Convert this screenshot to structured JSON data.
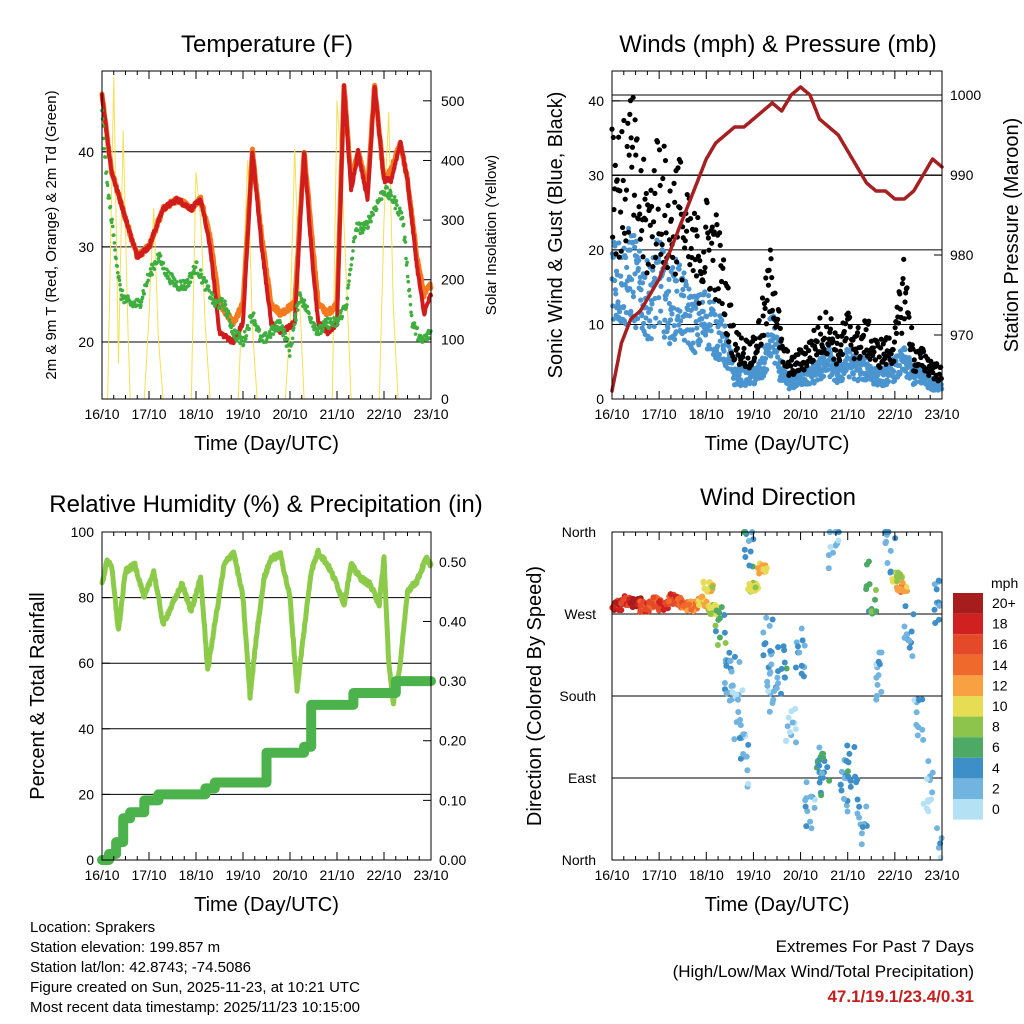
{
  "info": {
    "location": "Location: Sprakers",
    "elevation": "Station elevation: 199.857 m",
    "latlon": "Station lat/lon: 42.8743; -74.5086",
    "created": "Figure created on Sun, 2025-11-23, at 10:21 UTC",
    "latest": "Most recent data timestamp: 2025/11/23 10:15:00",
    "extremes_title": "Extremes For Past 7 Days",
    "extremes_sub": "(High/Low/Max Wind/Total Precipitation)",
    "extremes_values": "47.1/19.1/23.4/0.31"
  },
  "colors": {
    "temp2m": "#d01c1c",
    "temp9m": "#f57a1e",
    "dewpoint": "#3fae3f",
    "solar": "#f5e050",
    "wind": "#4a95d0",
    "gust": "#000000",
    "pressure": "#a52020",
    "rh": "#8ccb4a",
    "precip": "#4cb24c"
  },
  "chart_data": [
    {
      "id": "temperature",
      "type": "line",
      "title": "Temperature (F)",
      "xlabel": "Time (Day/UTC)",
      "ylabel": "2m & 9m T (Red, Orange) & 2m Td (Green)",
      "y2label": "Solar Insolation (Yellow)",
      "x_ticks": [
        "16/10",
        "17/10",
        "18/10",
        "19/10",
        "20/10",
        "21/10",
        "22/10",
        "23/10"
      ],
      "xlim": [
        0,
        7
      ],
      "ylim": [
        14,
        48.5
      ],
      "yticks": [
        20,
        30,
        40
      ],
      "y2lim": [
        0,
        550
      ],
      "y2ticks": [
        0,
        100,
        200,
        300,
        400,
        500
      ],
      "series": [
        {
          "name": "2m T",
          "color_key": "temp2m",
          "x": [
            0,
            0.2,
            0.5,
            0.75,
            1,
            1.3,
            1.6,
            1.9,
            2.1,
            2.3,
            2.5,
            2.8,
            3,
            3.2,
            3.4,
            3.6,
            3.8,
            4.1,
            4.3,
            4.45,
            4.6,
            4.8,
            5,
            5.15,
            5.3,
            5.45,
            5.65,
            5.8,
            6,
            6.15,
            6.35,
            6.5,
            6.7,
            6.85,
            7
          ],
          "y": [
            46,
            38,
            33,
            29,
            30,
            34,
            35,
            34,
            35,
            30,
            21,
            20,
            22,
            40,
            30,
            22,
            21,
            22,
            40,
            30,
            22,
            21,
            22,
            47,
            36,
            40,
            35,
            47,
            37,
            37,
            41,
            37,
            28,
            23,
            25
          ]
        },
        {
          "name": "9m T",
          "color_key": "temp9m",
          "x": [
            0,
            0.2,
            0.5,
            0.75,
            1,
            1.3,
            1.6,
            1.9,
            2.1,
            2.3,
            2.5,
            2.8,
            3,
            3.2,
            3.4,
            3.6,
            3.8,
            4.1,
            4.3,
            4.45,
            4.6,
            4.8,
            5,
            5.15,
            5.3,
            5.45,
            5.65,
            5.8,
            6,
            6.15,
            6.35,
            6.5,
            6.7,
            6.85,
            7
          ],
          "y": [
            46,
            38,
            33,
            29,
            30,
            34,
            35,
            34,
            35,
            31,
            24,
            22,
            24,
            40,
            31,
            24,
            23,
            24,
            40,
            32,
            24,
            23,
            24,
            47,
            37,
            40,
            36,
            47,
            37,
            38,
            41,
            37,
            29,
            25,
            26
          ]
        },
        {
          "name": "2m Td",
          "color_key": "dewpoint",
          "x": [
            0,
            0.1,
            0.25,
            0.4,
            0.6,
            0.8,
            1,
            1.2,
            1.4,
            1.6,
            1.8,
            2,
            2.2,
            2.4,
            2.6,
            2.8,
            3,
            3.2,
            3.4,
            3.6,
            3.8,
            4,
            4.2,
            4.4,
            4.6,
            4.8,
            5,
            5.2,
            5.4,
            5.6,
            5.8,
            6,
            6.2,
            6.4,
            6.6,
            6.8,
            7
          ],
          "y": [
            44,
            37,
            31,
            25,
            24,
            24,
            27,
            29,
            27,
            26,
            26,
            28,
            26,
            24,
            24,
            21,
            20,
            23,
            20,
            21,
            22,
            19,
            25,
            23,
            21,
            22,
            22,
            24,
            32,
            32,
            34,
            36,
            35,
            33,
            22,
            20,
            21
          ]
        },
        {
          "name": "Solar",
          "axis": "y2",
          "color_key": "solar",
          "x": [
            0,
            0.12,
            0.25,
            0.35,
            0.45,
            0.55,
            0.6,
            0.9,
            1,
            1.1,
            1.2,
            1.3,
            1.9,
            2,
            2.1,
            2.2,
            2.3,
            2.9,
            3,
            3.1,
            3.2,
            3.3,
            3.9,
            4,
            4.1,
            4.2,
            4.3,
            4.9,
            5,
            5.1,
            5.2,
            5.3,
            5.9,
            6,
            6.1,
            6.2,
            6.3,
            6.9,
            7
          ],
          "y": [
            0,
            0,
            540,
            60,
            450,
            120,
            0,
            0,
            140,
            320,
            100,
            0,
            0,
            380,
            300,
            120,
            0,
            0,
            200,
            400,
            120,
            0,
            0,
            120,
            420,
            180,
            0,
            0,
            500,
            380,
            200,
            0,
            0,
            300,
            480,
            150,
            0,
            0,
            0
          ]
        }
      ]
    },
    {
      "id": "winds",
      "type": "scatter",
      "title": "Winds (mph) & Pressure (mb)",
      "xlabel": "Time (Day/UTC)",
      "ylabel": "Sonic Wind & Gust (Blue, Black)",
      "y2label": "Station Pressure (Maroon)",
      "x_ticks": [
        "16/10",
        "17/10",
        "18/10",
        "19/10",
        "20/10",
        "21/10",
        "22/10",
        "23/10"
      ],
      "xlim": [
        0,
        7
      ],
      "ylim": [
        0,
        44
      ],
      "yticks": [
        0,
        10,
        20,
        30,
        40
      ],
      "y2lim": [
        962,
        1003
      ],
      "y2ticks": [
        970,
        980,
        990,
        1000
      ],
      "series": [
        {
          "name": "Sonic Wind",
          "color_key": "wind",
          "x": [
            0,
            0.2,
            0.4,
            0.6,
            0.8,
            1,
            1.2,
            1.4,
            1.6,
            1.8,
            2,
            2.2,
            2.4,
            2.6,
            2.8,
            3,
            3.2,
            3.4,
            3.6,
            3.8,
            4,
            4.2,
            4.4,
            4.6,
            4.8,
            5,
            5.2,
            5.4,
            5.6,
            5.8,
            6,
            6.2,
            6.4,
            6.6,
            6.8,
            7
          ],
          "y": [
            18,
            15,
            17,
            14,
            13,
            16,
            12,
            14,
            11,
            10,
            11,
            9,
            7,
            3,
            3,
            3,
            4,
            9,
            3,
            2,
            3,
            3,
            4,
            5,
            3,
            5,
            4,
            4,
            3,
            3,
            4,
            5,
            3,
            3,
            2,
            2
          ]
        },
        {
          "name": "Gust",
          "color_key": "gust",
          "x": [
            0,
            0.2,
            0.4,
            0.6,
            0.8,
            1,
            1.2,
            1.4,
            1.6,
            1.8,
            2,
            2.2,
            2.4,
            2.6,
            2.8,
            3,
            3.2,
            3.4,
            3.6,
            3.8,
            4,
            4.2,
            4.4,
            4.6,
            4.8,
            5,
            5.2,
            5.4,
            5.6,
            5.8,
            6,
            6.2,
            6.4,
            6.6,
            6.8,
            7
          ],
          "y": [
            30,
            26,
            31,
            24,
            22,
            28,
            22,
            25,
            20,
            18,
            20,
            19,
            13,
            7,
            6,
            6,
            10,
            16,
            6,
            4,
            5,
            6,
            8,
            9,
            6,
            9,
            7,
            8,
            6,
            6,
            7,
            15,
            5,
            5,
            4,
            3
          ]
        },
        {
          "name": "Pressure",
          "axis": "y2",
          "color_key": "pressure",
          "x": [
            0,
            0.2,
            0.4,
            0.6,
            0.8,
            1,
            1.2,
            1.4,
            1.6,
            1.8,
            2,
            2.2,
            2.4,
            2.6,
            2.8,
            3,
            3.2,
            3.4,
            3.6,
            3.8,
            4,
            4.2,
            4.4,
            4.6,
            4.8,
            5,
            5.2,
            5.4,
            5.6,
            5.8,
            6,
            6.2,
            6.4,
            6.6,
            6.8,
            7
          ],
          "y": [
            963,
            969,
            972,
            973,
            975,
            977,
            980,
            983,
            986,
            989,
            992,
            994,
            995,
            996,
            996,
            997,
            998,
            999,
            998,
            1000,
            1001,
            1000,
            997,
            996,
            995,
            993,
            991,
            989,
            988,
            988,
            987,
            987,
            988,
            990,
            992,
            991
          ]
        }
      ]
    },
    {
      "id": "humidity",
      "type": "line",
      "title": "Relative Humidity (%) & Precipitation (in)",
      "xlabel": "Time (Day/UTC)",
      "ylabel": "Percent & Total Rainfall",
      "x_ticks": [
        "16/10",
        "17/10",
        "18/10",
        "19/10",
        "20/10",
        "21/10",
        "22/10",
        "23/10"
      ],
      "xlim": [
        0,
        7
      ],
      "ylim": [
        0,
        100
      ],
      "yticks": [
        0,
        20,
        40,
        60,
        80,
        100
      ],
      "y2lim": [
        0,
        0.55
      ],
      "y2ticks": [
        "0.00",
        "0.10",
        "0.20",
        "0.30",
        "0.40",
        "0.50"
      ],
      "series": [
        {
          "name": "RH",
          "color_key": "rh",
          "x": [
            0,
            0.1,
            0.2,
            0.35,
            0.5,
            0.7,
            0.9,
            1.1,
            1.3,
            1.5,
            1.7,
            1.9,
            2.1,
            2.25,
            2.4,
            2.6,
            2.8,
            3,
            3.15,
            3.3,
            3.45,
            3.6,
            3.8,
            4,
            4.15,
            4.3,
            4.45,
            4.6,
            4.8,
            5,
            5.15,
            5.3,
            5.5,
            5.7,
            5.9,
            6,
            6.1,
            6.2,
            6.35,
            6.5,
            6.7,
            6.9,
            7
          ],
          "y": [
            84,
            91,
            90,
            70,
            88,
            90,
            80,
            88,
            72,
            78,
            84,
            76,
            86,
            58,
            72,
            90,
            94,
            80,
            50,
            70,
            86,
            92,
            93,
            80,
            52,
            70,
            88,
            94,
            90,
            84,
            78,
            90,
            86,
            84,
            78,
            92,
            60,
            48,
            60,
            82,
            85,
            92,
            90
          ]
        },
        {
          "name": "Precipitation",
          "axis": "y2",
          "color_key": "precip",
          "x": [
            0,
            0.15,
            0.3,
            0.45,
            0.6,
            0.9,
            1.2,
            1.5,
            2.2,
            2.4,
            3.2,
            3.5,
            4.3,
            4.45,
            5.1,
            5.35,
            6.1,
            6.25,
            7
          ],
          "y": [
            0,
            0.01,
            0.03,
            0.07,
            0.08,
            0.1,
            0.11,
            0.11,
            0.12,
            0.13,
            0.13,
            0.18,
            0.19,
            0.26,
            0.26,
            0.28,
            0.28,
            0.3,
            0.3
          ]
        }
      ]
    },
    {
      "id": "direction",
      "type": "scatter",
      "title": "Wind Direction",
      "xlabel": "Time (Day/UTC)",
      "ylabel": "Direction (Colored By Speed)",
      "x_ticks": [
        "16/10",
        "17/10",
        "18/10",
        "19/10",
        "20/10",
        "21/10",
        "22/10",
        "23/10"
      ],
      "xlim": [
        0,
        7
      ],
      "ylim": [
        0,
        360
      ],
      "ytick_labels": [
        "North",
        "East",
        "South",
        "West",
        "North"
      ],
      "colorbar_title": "mph",
      "colorbar_labels": [
        "20+",
        "18",
        "16",
        "14",
        "12",
        "10",
        "8",
        "6",
        "4",
        "2",
        "0"
      ],
      "colorbar_colors": [
        "#a71c1c",
        "#d02020",
        "#e44a2a",
        "#f0692c",
        "#f8a042",
        "#e6dd55",
        "#8cc44c",
        "#4caa64",
        "#3e8fc8",
        "#72b4e0",
        "#b5e1f5"
      ],
      "series": [
        {
          "name": "Direction",
          "x": [
            0.1,
            0.3,
            0.5,
            0.7,
            0.9,
            1.1,
            1.3,
            1.5,
            1.7,
            1.9,
            2.05,
            2.15,
            2.3,
            2.5,
            2.6,
            2.7,
            2.8,
            2.9,
            3,
            3.2,
            3.3,
            3.4,
            3.6,
            3.8,
            4,
            4.2,
            4.4,
            4.5,
            4.7,
            4.9,
            5.1,
            5.3,
            5.5,
            5.7,
            5.9,
            6.05,
            6.15,
            6.3,
            6.5,
            6.7,
            6.9,
            7
          ],
          "y": [
            280,
            285,
            282,
            278,
            283,
            280,
            286,
            282,
            279,
            284,
            300,
            275,
            260,
            200,
            190,
            160,
            110,
            350,
            300,
            320,
            240,
            190,
            210,
            140,
            230,
            60,
            90,
            110,
            350,
            80,
            100,
            40,
            300,
            200,
            340,
            310,
            300,
            250,
            150,
            80,
            280,
            20
          ],
          "speed": [
            18,
            17,
            19,
            16,
            15,
            17,
            16,
            14,
            13,
            12,
            10,
            9,
            6,
            3,
            2,
            1,
            2,
            4,
            9,
            11,
            3,
            2,
            4,
            1,
            3,
            2,
            5,
            4,
            2,
            3,
            4,
            3,
            6,
            2,
            4,
            9,
            12,
            3,
            2,
            1,
            3,
            2
          ]
        }
      ]
    }
  ]
}
